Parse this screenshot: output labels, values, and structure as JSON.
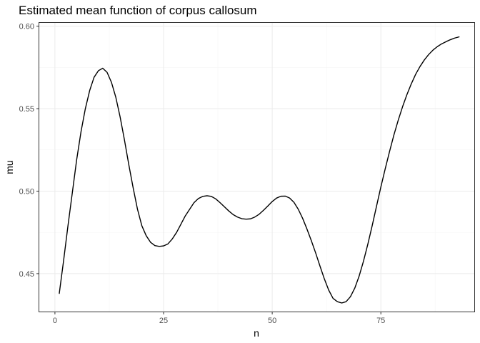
{
  "chart_data": {
    "type": "line",
    "title": "Estimated mean function of corpus callosum",
    "xlabel": "n",
    "ylabel": "mu",
    "xlim": [
      -3.6,
      96.5
    ],
    "ylim": [
      0.427,
      0.602
    ],
    "x_ticks": [
      0,
      25,
      50,
      75
    ],
    "x_tick_labels": [
      "0",
      "25",
      "50",
      "75"
    ],
    "y_ticks": [
      0.45,
      0.5,
      0.55,
      0.6
    ],
    "y_tick_labels": [
      "0.45",
      "0.50",
      "0.55",
      "0.60"
    ],
    "grid": true,
    "legend": "none",
    "series": [
      {
        "color": "#000000",
        "x": [
          1,
          2,
          3,
          4,
          5,
          6,
          7,
          8,
          9,
          10,
          11,
          12,
          13,
          14,
          15,
          16,
          17,
          18,
          19,
          20,
          21,
          22,
          23,
          24,
          25,
          26,
          27,
          28,
          29,
          30,
          31,
          32,
          33,
          34,
          35,
          36,
          37,
          38,
          39,
          40,
          41,
          42,
          43,
          44,
          45,
          46,
          47,
          48,
          49,
          50,
          51,
          52,
          53,
          54,
          55,
          56,
          57,
          58,
          59,
          60,
          61,
          62,
          63,
          64,
          65,
          66,
          67,
          68,
          69,
          70,
          71,
          72,
          73,
          74,
          75,
          76,
          77,
          78,
          79,
          80,
          81,
          82,
          83,
          84,
          85,
          86,
          87,
          88,
          89,
          90,
          91,
          92,
          93
        ],
        "values": [
          0.438,
          0.458,
          0.479,
          0.499,
          0.519,
          0.536,
          0.55,
          0.561,
          0.569,
          0.573,
          0.5745,
          0.572,
          0.566,
          0.557,
          0.545,
          0.531,
          0.516,
          0.502,
          0.489,
          0.479,
          0.473,
          0.469,
          0.467,
          0.4665,
          0.4668,
          0.468,
          0.471,
          0.475,
          0.48,
          0.485,
          0.489,
          0.493,
          0.4955,
          0.4968,
          0.4972,
          0.4968,
          0.4953,
          0.493,
          0.4905,
          0.488,
          0.4858,
          0.4843,
          0.4833,
          0.483,
          0.4832,
          0.4843,
          0.486,
          0.4884,
          0.491,
          0.4937,
          0.4958,
          0.4969,
          0.497,
          0.4958,
          0.4932,
          0.489,
          0.4835,
          0.477,
          0.47,
          0.4625,
          0.4545,
          0.4468,
          0.44,
          0.435,
          0.433,
          0.4322,
          0.433,
          0.436,
          0.4412,
          0.4485,
          0.4575,
          0.4678,
          0.479,
          0.4908,
          0.5025,
          0.5135,
          0.524,
          0.534,
          0.543,
          0.5512,
          0.5585,
          0.565,
          0.5708,
          0.5755,
          0.5795,
          0.5828,
          0.5855,
          0.5876,
          0.5893,
          0.5906,
          0.5918,
          0.5928,
          0.5935
        ]
      }
    ]
  }
}
